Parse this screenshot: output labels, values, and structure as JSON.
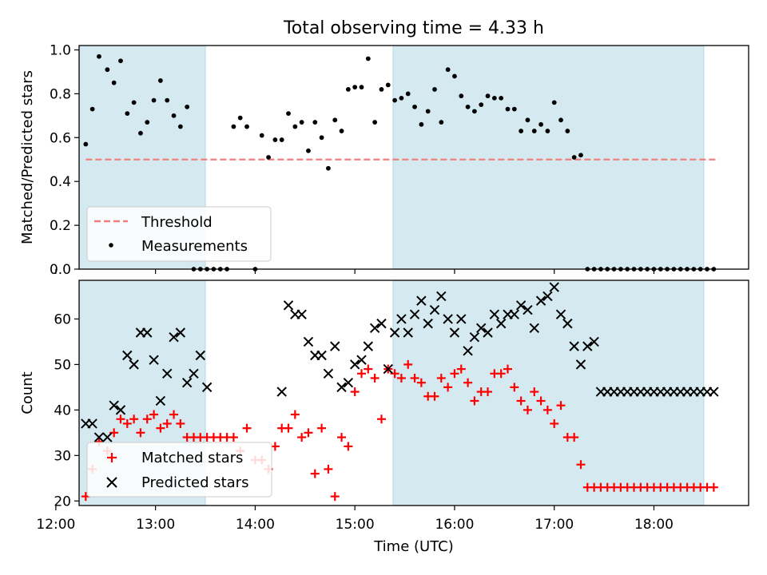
{
  "figure_title": "Total observing time = 4.33 h",
  "colors": {
    "observing_band": "#d4eaf0",
    "threshold": "#f08080",
    "measurements": "#000000",
    "matched": "#ff0000",
    "predicted": "#000000"
  },
  "chart_data": [
    {
      "type": "scatter",
      "title": "Total observing time = 4.33 h",
      "xlabel": "",
      "ylabel": "Matched/Predicted stars",
      "xlim": [
        "12:14",
        "18:57"
      ],
      "ylim": [
        0,
        1.02
      ],
      "yticks": [
        "0.0",
        "0.2",
        "0.4",
        "0.6",
        "0.8",
        "1.0"
      ],
      "grid": false,
      "legend_position": "lower-left",
      "shaded_intervals": [
        [
          "12:14",
          "13:30"
        ],
        [
          "15:23",
          "18:30"
        ]
      ],
      "threshold": {
        "name": "Threshold",
        "value": 0.5,
        "x_range": [
          "12:18",
          "18:39"
        ]
      },
      "series": [
        {
          "name": "Measurements",
          "x": [
            "12:18",
            "12:22",
            "12:26",
            "12:31",
            "12:35",
            "12:39",
            "12:43",
            "12:47",
            "12:51",
            "12:55",
            "12:59",
            "13:03",
            "13:07",
            "13:11",
            "13:15",
            "13:19",
            "13:23",
            "13:27",
            "13:31",
            "13:35",
            "13:39",
            "13:43",
            "13:47",
            "13:51",
            "13:55",
            "14:00",
            "14:04",
            "14:08",
            "14:12",
            "14:16",
            "14:20",
            "14:24",
            "14:28",
            "14:32",
            "14:36",
            "14:40",
            "14:44",
            "14:48",
            "14:52",
            "14:56",
            "15:00",
            "15:04",
            "15:08",
            "15:12",
            "15:16",
            "15:20",
            "15:24",
            "15:28",
            "15:32",
            "15:36",
            "15:40",
            "15:44",
            "15:48",
            "15:52",
            "15:56",
            "16:00",
            "16:04",
            "16:08",
            "16:12",
            "16:16",
            "16:20",
            "16:24",
            "16:28",
            "16:32",
            "16:36",
            "16:40",
            "16:44",
            "16:48",
            "16:52",
            "16:56",
            "17:00",
            "17:04",
            "17:08",
            "17:12",
            "17:16",
            "17:20",
            "17:24",
            "17:28",
            "17:32",
            "17:36",
            "17:40",
            "17:44",
            "17:48",
            "17:52",
            "17:56",
            "18:00",
            "18:04",
            "18:08",
            "18:12",
            "18:16",
            "18:20",
            "18:24",
            "18:28",
            "18:32",
            "18:36"
          ],
          "y": [
            0.57,
            0.73,
            0.97,
            0.91,
            0.85,
            0.95,
            0.71,
            0.76,
            0.62,
            0.67,
            0.77,
            0.86,
            0.77,
            0.7,
            0.65,
            0.74,
            0,
            0,
            0,
            0,
            0,
            0,
            0.65,
            0.69,
            0.65,
            0,
            0.61,
            0.51,
            0.59,
            0.59,
            0.71,
            0.65,
            0.67,
            0.54,
            0.67,
            0.6,
            0.46,
            0.68,
            0.63,
            0.82,
            0.83,
            0.83,
            0.96,
            0.67,
            0.82,
            0.84,
            0.77,
            0.78,
            0.8,
            0.74,
            0.66,
            0.72,
            0.82,
            0.67,
            0.91,
            0.88,
            0.79,
            0.74,
            0.72,
            0.75,
            0.79,
            0.78,
            0.78,
            0.73,
            0.73,
            0.63,
            0.68,
            0.63,
            0.66,
            0.63,
            0.76,
            0.68,
            0.63,
            0.51,
            0.52,
            0,
            0,
            0,
            0,
            0,
            0,
            0,
            0,
            0,
            0,
            0,
            0,
            0,
            0,
            0,
            0,
            0,
            0,
            0,
            0
          ]
        }
      ]
    },
    {
      "type": "scatter",
      "title": "",
      "xlabel": "Time (UTC)",
      "ylabel": "Count",
      "xlim": [
        "12:14",
        "18:57"
      ],
      "ylim": [
        19,
        68.5
      ],
      "yticks": [
        "20",
        "30",
        "40",
        "50",
        "60"
      ],
      "xticks": [
        "12:00",
        "13:00",
        "14:00",
        "15:00",
        "16:00",
        "17:00",
        "18:00"
      ],
      "grid": false,
      "legend_position": "lower-left",
      "shaded_intervals": [
        [
          "12:14",
          "13:30"
        ],
        [
          "15:23",
          "18:30"
        ]
      ],
      "series": [
        {
          "name": "Matched stars",
          "x": [
            "12:18",
            "12:22",
            "12:26",
            "12:31",
            "12:35",
            "12:39",
            "12:43",
            "12:47",
            "12:51",
            "12:55",
            "12:59",
            "13:03",
            "13:07",
            "13:11",
            "13:15",
            "13:19",
            "13:23",
            "13:27",
            "13:31",
            "13:35",
            "13:39",
            "13:43",
            "13:47",
            "13:51",
            "13:55",
            "14:00",
            "14:04",
            "14:08",
            "14:12",
            "14:16",
            "14:20",
            "14:24",
            "14:28",
            "14:32",
            "14:36",
            "14:40",
            "14:44",
            "14:48",
            "14:52",
            "14:56",
            "15:00",
            "15:04",
            "15:08",
            "15:12",
            "15:16",
            "15:20",
            "15:24",
            "15:28",
            "15:32",
            "15:36",
            "15:40",
            "15:44",
            "15:48",
            "15:52",
            "15:56",
            "16:00",
            "16:04",
            "16:08",
            "16:12",
            "16:16",
            "16:20",
            "16:24",
            "16:28",
            "16:32",
            "16:36",
            "16:40",
            "16:44",
            "16:48",
            "16:52",
            "16:56",
            "17:00",
            "17:04",
            "17:08",
            "17:12",
            "17:16",
            "17:20",
            "17:24",
            "17:28",
            "17:32",
            "17:36",
            "17:40",
            "17:44",
            "17:48",
            "17:52",
            "17:56",
            "18:00",
            "18:04",
            "18:08",
            "18:12",
            "18:16",
            "18:20",
            "18:24",
            "18:28",
            "18:32",
            "18:36"
          ],
          "y": [
            21,
            27,
            33,
            31,
            35,
            38,
            37,
            38,
            35,
            38,
            39,
            36,
            37,
            39,
            37,
            34,
            34,
            34,
            34,
            34,
            34,
            34,
            34,
            31,
            36,
            29,
            29,
            27,
            32,
            36,
            36,
            39,
            34,
            35,
            26,
            36,
            27,
            21,
            34,
            32,
            44,
            48,
            49,
            47,
            38,
            49,
            48,
            47,
            50,
            47,
            46,
            43,
            43,
            47,
            45,
            48,
            49,
            46,
            42,
            44,
            44,
            48,
            48,
            49,
            45,
            42,
            40,
            44,
            42,
            40,
            37,
            41,
            34,
            34,
            28,
            23,
            23,
            23,
            23,
            23,
            23,
            23,
            23,
            23,
            23,
            23,
            23,
            23,
            23,
            23,
            23,
            23,
            23,
            23,
            23
          ]
        },
        {
          "name": "Predicted stars",
          "x": [
            "12:18",
            "12:22",
            "12:26",
            "12:31",
            "12:35",
            "12:39",
            "12:43",
            "12:47",
            "12:51",
            "12:55",
            "12:59",
            "13:03",
            "13:07",
            "13:11",
            "13:15",
            "13:19",
            "13:23",
            "13:27",
            "13:31",
            "14:16",
            "14:20",
            "14:24",
            "14:28",
            "14:32",
            "14:36",
            "14:40",
            "14:44",
            "14:48",
            "14:52",
            "14:56",
            "15:00",
            "15:04",
            "15:08",
            "15:12",
            "15:16",
            "15:20",
            "15:24",
            "15:28",
            "15:32",
            "15:36",
            "15:40",
            "15:44",
            "15:48",
            "15:52",
            "15:56",
            "16:00",
            "16:04",
            "16:08",
            "16:12",
            "16:16",
            "16:20",
            "16:24",
            "16:28",
            "16:32",
            "16:36",
            "16:40",
            "16:44",
            "16:48",
            "16:52",
            "16:56",
            "17:00",
            "17:04",
            "17:08",
            "17:12",
            "17:16",
            "17:20",
            "17:24",
            "17:28",
            "17:32",
            "17:36",
            "17:40",
            "17:44",
            "17:48",
            "17:52",
            "17:56",
            "18:00",
            "18:04",
            "18:08",
            "18:12",
            "18:16",
            "18:20",
            "18:24",
            "18:28",
            "18:32",
            "18:36"
          ],
          "y": [
            37,
            37,
            34,
            34,
            41,
            40,
            52,
            50,
            57,
            57,
            51,
            42,
            48,
            56,
            57,
            46,
            48,
            52,
            45,
            44,
            63,
            61,
            61,
            55,
            52,
            52,
            48,
            54,
            45,
            46,
            50,
            51,
            54,
            58,
            59,
            49,
            57,
            60,
            57,
            61,
            64,
            59,
            62,
            65,
            60,
            57,
            60,
            53,
            56,
            58,
            57,
            61,
            59,
            61,
            61,
            63,
            62,
            58,
            64,
            65,
            67,
            61,
            59,
            54,
            50,
            54,
            55,
            44,
            44,
            44,
            44,
            44,
            44,
            44,
            44,
            44,
            44,
            44,
            44,
            44,
            44,
            44,
            44,
            44,
            44
          ]
        }
      ]
    }
  ]
}
